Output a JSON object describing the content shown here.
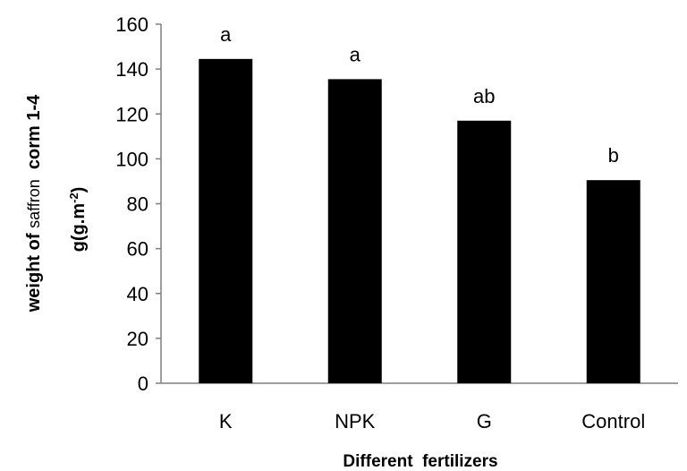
{
  "chart_data": {
    "type": "bar",
    "categories": [
      "K",
      "NPK",
      "G",
      "Control"
    ],
    "values": [
      144.5,
      135.5,
      117,
      90.5
    ],
    "significance_letters": [
      "a",
      "a",
      "ab",
      "b"
    ],
    "title": "",
    "xlabel": "Different  fertilizers",
    "ylabel": {
      "line1_part1": "weight of ",
      "line1_part2": "saffron",
      "line1_part3": "  corm 1-4",
      "line2_part1": "g(g.m",
      "line2_sup": "-2",
      "line2_part2": ")"
    },
    "ylim": [
      0,
      160
    ],
    "yticks": [
      "0",
      "20",
      "40",
      "60",
      "80",
      "100",
      "120",
      "140",
      "160"
    ],
    "grid": false,
    "bar_color": "#000000"
  }
}
